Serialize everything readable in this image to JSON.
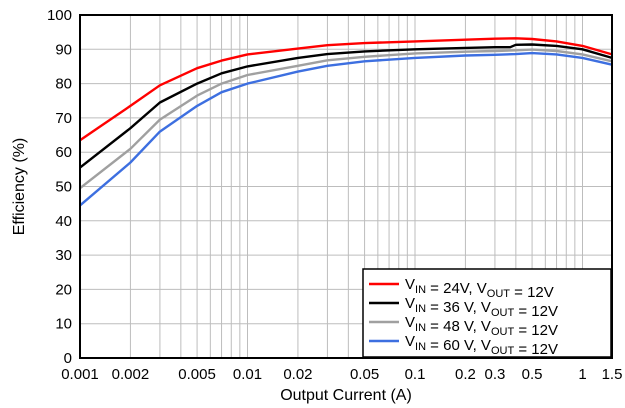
{
  "chart_data": {
    "type": "line",
    "xlabel": "Output Current (A)",
    "ylabel": "Efficiency (%)",
    "x_scale": "log",
    "xlim": [
      0.001,
      1.5
    ],
    "ylim": [
      0,
      100
    ],
    "grid": true,
    "legend_position": "bottom-right",
    "x_ticks": [
      {
        "value": 0.001,
        "label": "0.001"
      },
      {
        "value": 0.002,
        "label": "0.002"
      },
      {
        "value": 0.005,
        "label": "0.005"
      },
      {
        "value": 0.01,
        "label": "0.01"
      },
      {
        "value": 0.02,
        "label": "0.02"
      },
      {
        "value": 0.05,
        "label": "0.05"
      },
      {
        "value": 0.1,
        "label": "0.1"
      },
      {
        "value": 0.2,
        "label": "0.2"
      },
      {
        "value": 0.3,
        "label": "0.3"
      },
      {
        "value": 0.5,
        "label": "0.5"
      },
      {
        "value": 1,
        "label": "1"
      },
      {
        "value": 1.5,
        "label": "1.5"
      }
    ],
    "y_ticks": [
      0,
      10,
      20,
      30,
      40,
      50,
      60,
      70,
      80,
      90,
      100
    ],
    "series": [
      {
        "vin_text": "24V",
        "vout_text": "12V",
        "color": "#ff0000",
        "x": [
          0.001,
          0.002,
          0.003,
          0.005,
          0.007,
          0.01,
          0.02,
          0.03,
          0.05,
          0.1,
          0.2,
          0.3,
          0.4,
          0.5,
          0.7,
          1,
          1.5
        ],
        "y": [
          63.5,
          73.5,
          79.5,
          84.5,
          86.7,
          88.5,
          90.2,
          91.2,
          91.8,
          92.3,
          92.8,
          93.1,
          93.2,
          93,
          92.3,
          91,
          88.5
        ]
      },
      {
        "vin_text": "36 V",
        "vout_text": "12V",
        "color": "#000000",
        "x": [
          0.001,
          0.002,
          0.003,
          0.005,
          0.007,
          0.01,
          0.02,
          0.03,
          0.05,
          0.1,
          0.2,
          0.3,
          0.37,
          0.4,
          0.5,
          0.7,
          1,
          1.5
        ],
        "y": [
          55.5,
          67,
          74.5,
          80,
          83,
          85,
          87.5,
          88.6,
          89.4,
          90,
          90.4,
          90.6,
          90.6,
          91.3,
          91.4,
          91,
          90,
          87.5
        ]
      },
      {
        "vin_text": "48 V",
        "vout_text": "12V",
        "color": "#a0a0a0",
        "x": [
          0.001,
          0.002,
          0.003,
          0.005,
          0.007,
          0.01,
          0.02,
          0.03,
          0.05,
          0.1,
          0.2,
          0.3,
          0.4,
          0.5,
          0.7,
          1,
          1.5
        ],
        "y": [
          49.5,
          61,
          69.5,
          76.5,
          80,
          82.5,
          85.2,
          86.8,
          87.8,
          88.8,
          89.3,
          89.5,
          89.7,
          89.9,
          89.5,
          88.5,
          86.5
        ]
      },
      {
        "vin_text": "60 V",
        "vout_text": "12V",
        "color": "#3d6fe0",
        "x": [
          0.001,
          0.002,
          0.003,
          0.005,
          0.007,
          0.01,
          0.02,
          0.03,
          0.05,
          0.1,
          0.2,
          0.3,
          0.4,
          0.5,
          0.7,
          1,
          1.5
        ],
        "y": [
          44.5,
          57,
          66,
          73.5,
          77.5,
          80,
          83.5,
          85.2,
          86.5,
          87.5,
          88.2,
          88.4,
          88.6,
          88.9,
          88.5,
          87.5,
          85.5
        ]
      }
    ]
  }
}
